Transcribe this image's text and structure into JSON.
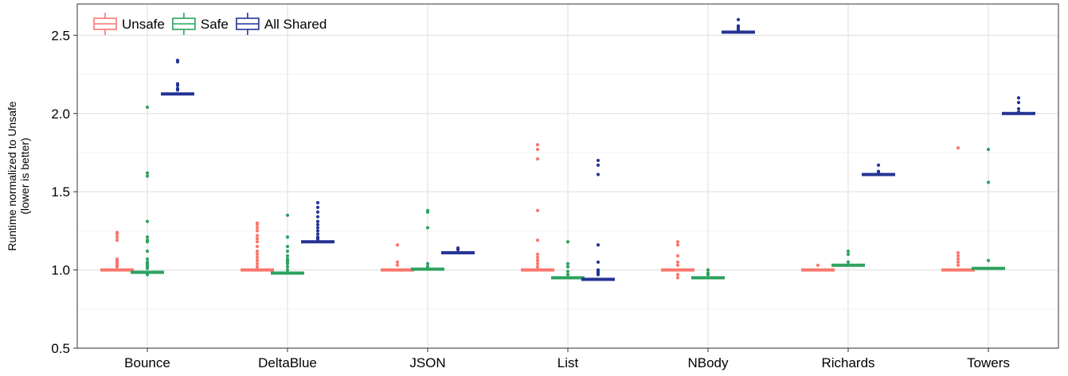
{
  "chart_data": {
    "type": "boxplot",
    "categories": [
      "Bounce",
      "DeltaBlue",
      "JSON",
      "List",
      "NBody",
      "Richards",
      "Towers"
    ],
    "ylabel": [
      "Runtime normalized to Unsafe",
      "(lower is better)"
    ],
    "ylim": [
      0.5,
      2.7
    ],
    "yticks": [
      0.5,
      1.0,
      1.5,
      2.0,
      2.5
    ],
    "ytick_labels": [
      "0.5",
      "1.0",
      "1.5",
      "2.0",
      "2.5"
    ],
    "grid": true,
    "legend_position": "top-left",
    "series": [
      {
        "name": "Unsafe",
        "color": "#F8766D",
        "medians": [
          1.0,
          1.0,
          1.0,
          1.0,
          1.0,
          1.0,
          1.0
        ],
        "outliers": [
          [
            1.24,
            1.23,
            1.21,
            1.19,
            1.07,
            1.06,
            1.05,
            1.04,
            1.03,
            1.02
          ],
          [
            1.3,
            1.29,
            1.27,
            1.25,
            1.22,
            1.2,
            1.18,
            1.15,
            1.12,
            1.1,
            1.08,
            1.06,
            1.04,
            1.02
          ],
          [
            1.16,
            1.05,
            1.03
          ],
          [
            1.8,
            1.77,
            1.71,
            1.38,
            1.19,
            1.1,
            1.08,
            1.06,
            1.04,
            1.02
          ],
          [
            1.18,
            1.16,
            1.09,
            1.05,
            1.03,
            0.95,
            0.97
          ],
          [
            1.03
          ],
          [
            1.78,
            1.11,
            1.09,
            1.07,
            1.05,
            1.03
          ]
        ]
      },
      {
        "name": "Safe",
        "color": "#2CA25F",
        "medians": [
          0.985,
          0.98,
          1.005,
          0.95,
          0.95,
          1.03,
          1.01
        ],
        "outliers": [
          [
            2.04,
            1.62,
            1.6,
            1.31,
            1.21,
            1.19,
            1.18,
            1.12,
            1.07,
            1.05,
            1.04,
            1.03,
            1.02,
            1.01,
            0.97,
            0.975
          ],
          [
            1.35,
            1.21,
            1.15,
            1.12,
            1.09,
            1.07,
            1.06,
            1.05,
            1.04,
            1.02,
            1.0
          ],
          [
            1.38,
            1.37,
            1.27,
            1.04,
            1.02
          ],
          [
            1.18,
            1.04,
            1.02,
            0.99,
            0.97
          ],
          [
            1.0,
            0.98,
            0.97
          ],
          [
            1.12,
            1.1,
            1.05
          ],
          [
            1.77,
            1.56,
            1.06
          ]
        ]
      },
      {
        "name": "All Shared",
        "color": "#253494",
        "medians": [
          2.125,
          1.18,
          1.11,
          0.94,
          2.52,
          1.61,
          2.0
        ],
        "outliers": [
          [
            2.34,
            2.33,
            2.19,
            2.18,
            2.16,
            2.15
          ],
          [
            1.43,
            1.4,
            1.37,
            1.34,
            1.31,
            1.29,
            1.27,
            1.25,
            1.23,
            1.21,
            1.2,
            1.19
          ],
          [
            1.14,
            1.13
          ],
          [
            1.7,
            1.67,
            1.61,
            1.16,
            1.05,
            1.0,
            0.99,
            0.98,
            0.97
          ],
          [
            2.6,
            2.56,
            2.55,
            2.54,
            2.53
          ],
          [
            1.67,
            1.63,
            1.62
          ],
          [
            2.1,
            2.07,
            2.03,
            2.01
          ]
        ]
      }
    ]
  }
}
